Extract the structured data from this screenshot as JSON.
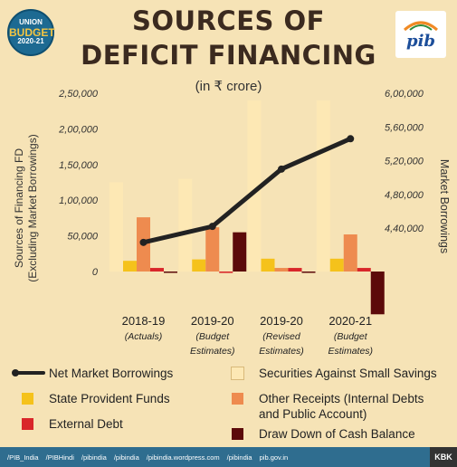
{
  "header": {
    "badge": {
      "line1": "UNION",
      "line2": "BUDGET",
      "line3": "2020-21"
    },
    "title_line1": "SOURCES OF",
    "title_line2": "DEFICIT FINANCING",
    "subtitle": "(in ₹ crore)",
    "logo_text": "pib"
  },
  "chart_data": {
    "type": "bar",
    "categories": [
      [
        "2018-19",
        "(Actuals)"
      ],
      [
        "2019-20",
        "(Budget",
        "Estimates)"
      ],
      [
        "2019-20",
        "(Revised",
        "Estimates)"
      ],
      [
        "2020-21",
        "(Budget",
        "Estimates)"
      ]
    ],
    "ylabel_left": "Sources of Financing FD\n(Excluding Market Borrowings)",
    "ylabel_right": "Market Borrowings",
    "left_axis": {
      "ylim": [
        -90000,
        250000
      ],
      "ticks": [
        0,
        50000,
        100000,
        150000,
        200000,
        250000
      ],
      "tick_labels": [
        "0",
        "50,000",
        "1,00,000",
        "1,50,000",
        "2,00,000",
        "2,50,000"
      ]
    },
    "right_axis": {
      "ylim": [
        600000,
        600000
      ],
      "range": [
        360000,
        600000
      ],
      "ticks": [
        440000,
        480000,
        520000,
        560000,
        600000
      ],
      "tick_labels": [
        "4,40,000",
        "4,80,000",
        "5,20,000",
        "5,60,000",
        "6,00,000"
      ]
    },
    "series": [
      {
        "name": "Securities Against Small Savings",
        "color": "#fde8b4",
        "values": [
          125000,
          130000,
          240000,
          240000
        ]
      },
      {
        "name": "State Provident Funds",
        "color": "#f5c21b",
        "values": [
          15000,
          17000,
          18000,
          18000
        ]
      },
      {
        "name": "Other Receipts (Internal Debts and Public Account)",
        "color": "#ee8b4f",
        "values": [
          76000,
          62000,
          5000,
          52000
        ]
      },
      {
        "name": "External Debt",
        "color": "#d9262a",
        "values": [
          5000,
          -2000,
          5000,
          5000
        ]
      },
      {
        "name": "Draw Down of Cash Balance",
        "color": "#5c0a0a",
        "values": [
          -1000,
          55000,
          0,
          -60000
        ]
      }
    ],
    "line_series": {
      "name": "Net Market Borrowings",
      "color": "#222222",
      "values": [
        423000,
        442000,
        510000,
        546000
      ]
    }
  },
  "legend": {
    "items": [
      {
        "label": "Net Market Borrowings",
        "kind": "line",
        "color": "#222222"
      },
      {
        "label": "Securities Against Small Savings",
        "kind": "box",
        "color": "#fde8b4"
      },
      {
        "label": "State Provident Funds",
        "kind": "box",
        "color": "#f5c21b"
      },
      {
        "label": "Other Receipts (Internal Debts\nand Public Account)",
        "kind": "box",
        "color": "#ee8b4f"
      },
      {
        "label": "External Debt",
        "kind": "box",
        "color": "#d9262a"
      },
      {
        "label": "Draw Down of Cash Balance",
        "kind": "box",
        "color": "#5c0a0a"
      }
    ]
  },
  "footer": {
    "handles": [
      "/PIB_India",
      "/PIBHindi",
      "/pibindia",
      "/pibindia",
      "/pibindia.wordpress.com",
      "/pibindia",
      "pib.gov.in"
    ],
    "brand": "KBK"
  }
}
